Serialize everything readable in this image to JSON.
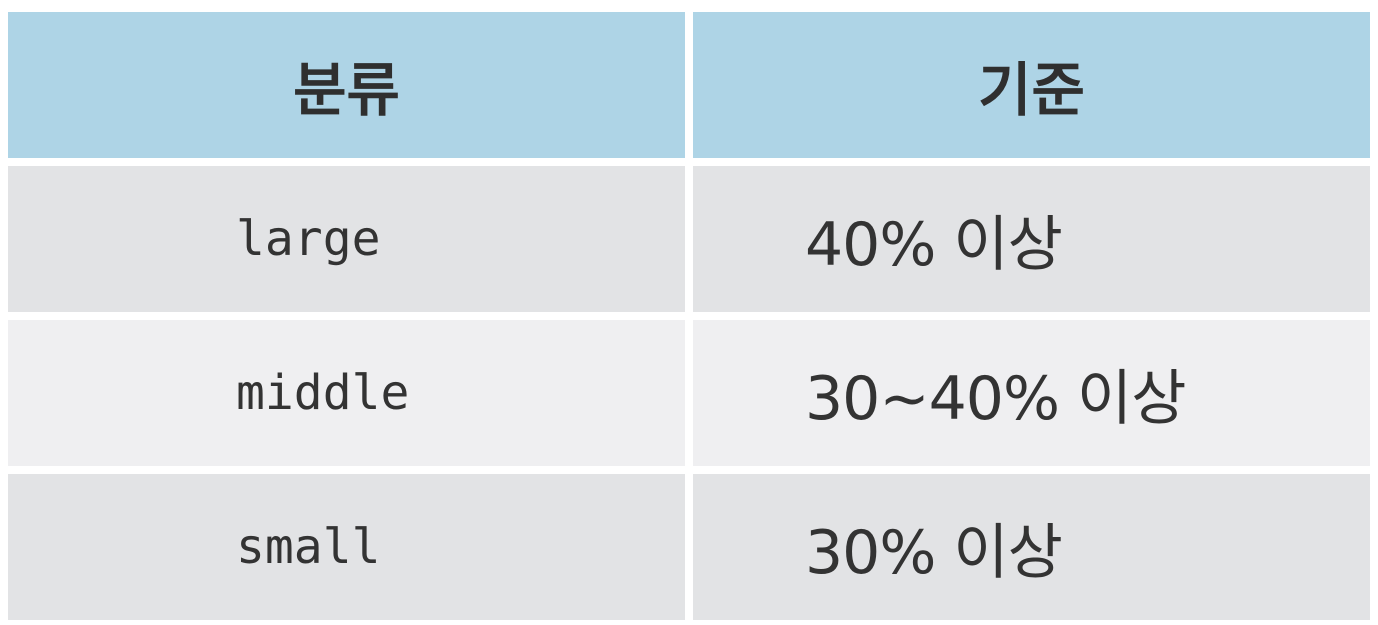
{
  "table": {
    "headers": [
      "분류",
      "기준"
    ],
    "rows": [
      {
        "category": "large",
        "criterion": "40% 이상"
      },
      {
        "category": "middle",
        "criterion": "30~40% 이상"
      },
      {
        "category": "small",
        "criterion": "30% 이상"
      }
    ]
  },
  "colors": {
    "header_bg": "#aed4e6",
    "row_odd_bg": "#e2e3e5",
    "row_even_bg": "#efeff1",
    "text": "#333333"
  }
}
